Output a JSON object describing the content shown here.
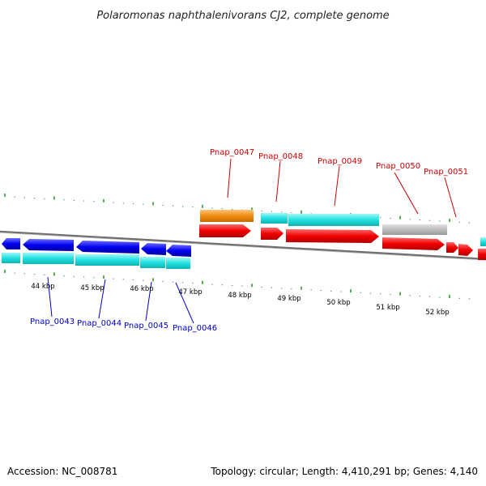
{
  "title": "Polaromonas naphthalenivorans CJ2, complete genome",
  "accession": "Accession: NC_008781",
  "topology": "Topology: circular; Length: 4,410,291 bp; Genes: 4,140",
  "colors": {
    "backbone": "#8a8a8a",
    "tick": "#2a9a2a",
    "cds_forward": "#f00000",
    "cds_reverse": "#0000ee",
    "cds_frame": "#20e0e0",
    "rna_or_special": "#f08c10",
    "pseudo_or_other": "#bdbdbd",
    "label_top": "#cc0000",
    "label_bottom": "#0000cc"
  },
  "scale": {
    "labels": [
      "44 kbp",
      "45 kbp",
      "46 kbp",
      "47 kbp",
      "48 kbp",
      "49 kbp",
      "50 kbp",
      "51 kbp",
      "52 kbp"
    ]
  },
  "gene_labels_top": [
    "Pnap_0047",
    "Pnap_0048",
    "Pnap_0049",
    "Pnap_0050",
    "Pnap_0051"
  ],
  "gene_labels_bottom": [
    "Pnap_0043",
    "Pnap_0044",
    "Pnap_0045",
    "Pnap_0046"
  ]
}
